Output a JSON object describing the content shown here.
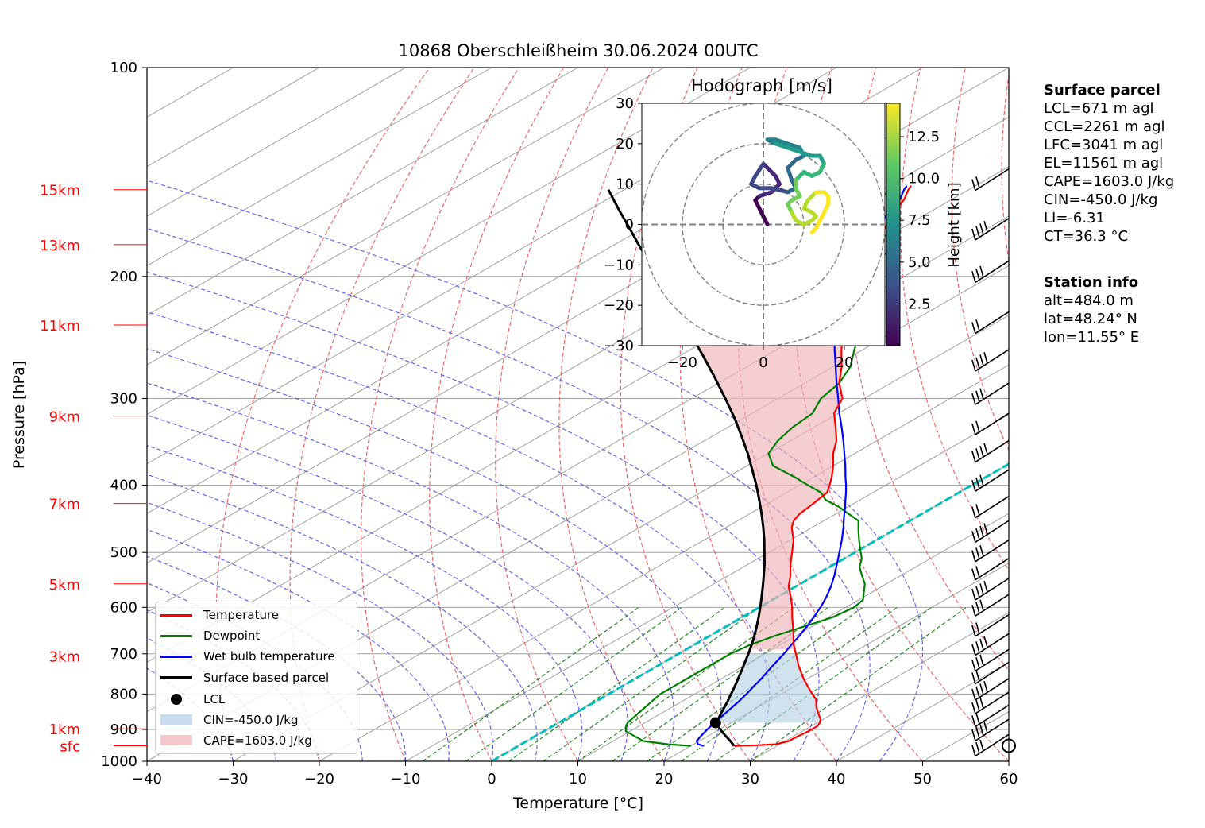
{
  "title": "10868 Oberschleißheim 30.06.2024 00UTC",
  "colors": {
    "temperature": "#ff0000",
    "dewpoint": "#008000",
    "wetbulb": "#0000ff",
    "parcel": "#000000",
    "cin_fill": "#b9d2e6",
    "cape_fill": "#f0b4b9",
    "isotherm": "#a0a0a0",
    "dry_adiabat": "#f06464",
    "moist_adiabat": "#6464f0",
    "mixing_ratio": "#228b22",
    "freezing_ccl": "#00bfbf"
  },
  "chart_data": {
    "type": "line",
    "title": "10868 Oberschleißheim 30.06.2024 00UTC",
    "xlabel": "Temperature [°C]",
    "ylabel": "Pressure [hPa]",
    "x_ticks": [
      "−40",
      "−30",
      "−20",
      "−10",
      "0",
      "10",
      "20",
      "30",
      "40",
      "50",
      "60"
    ],
    "y_ticks": [
      "100",
      "200",
      "300",
      "400",
      "500",
      "600",
      "700",
      "800",
      "900",
      "1000"
    ],
    "xlim": [
      -40,
      60
    ],
    "ylim": [
      1000,
      100
    ],
    "y_scale": "log",
    "grid": true,
    "height_labels": [
      {
        "label": "15km",
        "p": 150
      },
      {
        "label": "13km",
        "p": 180
      },
      {
        "label": "11km",
        "p": 235
      },
      {
        "label": "9km",
        "p": 318
      },
      {
        "label": "7km",
        "p": 425
      },
      {
        "label": "5km",
        "p": 555
      },
      {
        "label": "3km",
        "p": 705
      },
      {
        "label": "1km",
        "p": 898
      },
      {
        "label": "sfc",
        "p": 950
      }
    ],
    "series": [
      {
        "name": "Temperature",
        "p": [
          950,
          948,
          945,
          935,
          920,
          905,
          890,
          880,
          870,
          855,
          835,
          815,
          790,
          760,
          730,
          705,
          680,
          650,
          620,
          600,
          580,
          560,
          540,
          520,
          500,
          480,
          460,
          450,
          440,
          430,
          420,
          410,
          400,
          390,
          375,
          360,
          345,
          330,
          315,
          300,
          285,
          270,
          255,
          240,
          230,
          220,
          210,
          205,
          200,
          195,
          190,
          185,
          180,
          175,
          170,
          165,
          160,
          155,
          150,
          148
        ],
        "values": [
          25,
          27.5,
          29.5,
          30.4,
          30.5,
          30.7,
          30.7,
          30.3,
          29.7,
          28.4,
          26.7,
          25.2,
          22.6,
          19.5,
          16.5,
          14.1,
          11.6,
          8.8,
          5.8,
          3.8,
          1.6,
          -0.8,
          -2.8,
          -5.1,
          -7.3,
          -9.6,
          -12.4,
          -13.5,
          -14.2,
          -14.5,
          -14.9,
          -15.3,
          -16.5,
          -17.8,
          -20.0,
          -22.5,
          -24.7,
          -27.5,
          -30.5,
          -32.5,
          -36.0,
          -39.0,
          -42.5,
          -46.0,
          -48.5,
          -51.0,
          -54.0,
          -54.5,
          -55.0,
          -55.5,
          -57.0,
          -58.5,
          -60.0,
          -61.0,
          -62.0,
          -63.5,
          -64.5,
          -65.5,
          -67.0,
          -67.5
        ]
      },
      {
        "name": "Dewpoint",
        "p": [
          950,
          945,
          935,
          920,
          905,
          890,
          880,
          860,
          840,
          820,
          800,
          780,
          760,
          740,
          720,
          700,
          680,
          660,
          640,
          620,
          600,
          585,
          570,
          555,
          540,
          525,
          510,
          495,
          480,
          465,
          450,
          440,
          430,
          420,
          410,
          400,
          390,
          375,
          360,
          345,
          330,
          315,
          300,
          285,
          270,
          255,
          245,
          235,
          225,
          215,
          205,
          200,
          195,
          190,
          185,
          180,
          175,
          170,
          165,
          160,
          155,
          150,
          148
        ],
        "values": [
          20.0,
          17.0,
          13.5,
          11.5,
          9.5,
          8.5,
          8.0,
          7.5,
          7.0,
          6.5,
          6.0,
          6.0,
          6.0,
          6.0,
          6.0,
          6.0,
          6.5,
          7.5,
          9.0,
          10.5,
          11.0,
          10.5,
          9.0,
          7.5,
          5.5,
          3.5,
          2.0,
          0.0,
          -2.0,
          -4.0,
          -6.0,
          -8.5,
          -11.0,
          -14.0,
          -16.0,
          -19.0,
          -22.0,
          -27.0,
          -30.0,
          -31.5,
          -32.5,
          -33.0,
          -35.0,
          -36.0,
          -38.0,
          -41.0,
          -43.0,
          -46.5,
          -50.0,
          -53.0,
          -55.0,
          -56.0,
          -59.0,
          -58.0,
          -56.5,
          -58.0,
          -60.0,
          -66.0,
          -68.0,
          -68.0,
          -68.5,
          -69.0,
          -70.0
        ]
      },
      {
        "name": "Wet bulb temperature",
        "p": [
          950,
          945,
          935,
          920,
          900,
          880,
          860,
          840,
          820,
          800,
          780,
          760,
          740,
          720,
          700,
          680,
          660,
          640,
          620,
          600,
          580,
          560,
          540,
          520,
          500,
          480,
          460,
          450,
          440,
          430,
          420,
          410,
          400,
          390,
          375,
          360,
          345,
          330,
          315,
          300,
          285,
          270,
          255,
          240,
          230,
          220,
          210,
          205,
          200,
          195,
          190,
          185,
          180,
          175,
          170,
          165,
          160,
          155,
          150,
          148
        ],
        "values": [
          21.5,
          20.5,
          19.7,
          19.2,
          18.6,
          18.1,
          17.6,
          17.1,
          16.6,
          16.0,
          15.3,
          14.6,
          13.8,
          13.0,
          12.2,
          11.3,
          10.4,
          9.4,
          8.3,
          7.1,
          5.7,
          4.1,
          2.3,
          0.3,
          -1.8,
          -4.0,
          -6.4,
          -7.7,
          -9.0,
          -10.3,
          -11.7,
          -13.1,
          -14.6,
          -16.2,
          -18.6,
          -21.2,
          -23.9,
          -26.8,
          -29.9,
          -33.0,
          -36.3,
          -39.7,
          -43.3,
          -47.0,
          -49.5,
          -52.0,
          -54.5,
          -55.0,
          -55.5,
          -56.0,
          -57.5,
          -59.0,
          -60.5,
          -61.5,
          -62.5,
          -64.0,
          -65.0,
          -66.0,
          -67.5,
          -68.0
        ]
      },
      {
        "name": "Surface based parcel",
        "p": [
          950,
          935,
          920,
          905,
          890,
          880,
          860,
          840,
          820,
          800,
          780,
          760,
          740,
          720,
          700,
          680,
          660,
          640,
          620,
          600,
          580,
          560,
          540,
          520,
          500,
          480,
          460,
          440,
          420,
          400,
          380,
          360,
          340,
          320,
          300,
          280,
          260,
          240,
          220,
          210,
          200,
          190,
          180,
          170,
          160,
          150
        ],
        "values": [
          25.0,
          23.6,
          22.1,
          20.6,
          19.2,
          18.3,
          17.3,
          16.3,
          15.3,
          14.2,
          13.1,
          11.9,
          10.7,
          9.4,
          8.1,
          6.7,
          5.2,
          3.6,
          1.9,
          0.1,
          -1.8,
          -3.8,
          -5.9,
          -8.1,
          -10.5,
          -13.0,
          -15.7,
          -18.6,
          -21.7,
          -25.0,
          -28.6,
          -32.4,
          -36.6,
          -41.1,
          -46.1,
          -51.5,
          -57.4,
          -63.9,
          -70.9,
          -74.7,
          -78.6,
          -82.8,
          -87.2,
          -91.8,
          -96.7,
          -101.8
        ]
      }
    ],
    "lcl": {
      "p": 880,
      "t": 18.2
    },
    "wind_barbs": {
      "x_position": "right axis",
      "p": [
        950,
        915,
        870,
        830,
        795,
        760,
        720,
        690,
        655,
        615,
        575,
        545,
        510,
        480,
        450,
        415,
        380,
        345,
        315,
        285,
        255,
        225,
        190,
        165,
        140
      ]
    },
    "hodograph": {
      "title": "Hodograph [m/s]",
      "xlim": [
        -30,
        30
      ],
      "ylim": [
        -30,
        30
      ],
      "ticks": [
        "−30",
        "−20",
        "−10",
        "0",
        "10",
        "20",
        "30"
      ],
      "x_ticks": [
        "−20",
        "0",
        "20"
      ],
      "rings": [
        10,
        20,
        30
      ],
      "colorbar_label": "Height [km]",
      "colorbar_ticks": [
        "2.5",
        "5.0",
        "7.5",
        "10.0",
        "12.5"
      ],
      "trace": [
        [
          1,
          0
        ],
        [
          0,
          2
        ],
        [
          -1,
          4
        ],
        [
          -2,
          6
        ],
        [
          -1,
          7
        ],
        [
          2,
          8
        ],
        [
          4,
          10
        ],
        [
          3,
          12
        ],
        [
          1,
          14
        ],
        [
          0,
          15
        ],
        [
          -2,
          12
        ],
        [
          -3,
          10
        ],
        [
          -1,
          9
        ],
        [
          2,
          9
        ],
        [
          6,
          8
        ],
        [
          8,
          9
        ],
        [
          7,
          11
        ],
        [
          6,
          14
        ],
        [
          8,
          16
        ],
        [
          10,
          17
        ],
        [
          9,
          19
        ],
        [
          6,
          20
        ],
        [
          3,
          21
        ],
        [
          1,
          21
        ],
        [
          3,
          20
        ],
        [
          6,
          19
        ],
        [
          9,
          18
        ],
        [
          12,
          17
        ],
        [
          14,
          17
        ],
        [
          15,
          15
        ],
        [
          14,
          13
        ],
        [
          12,
          12
        ],
        [
          10,
          13
        ],
        [
          9,
          12
        ],
        [
          8,
          11
        ],
        [
          8,
          9
        ],
        [
          9,
          7
        ],
        [
          7,
          6
        ],
        [
          6,
          5
        ],
        [
          7,
          3
        ],
        [
          8,
          1
        ],
        [
          10,
          0
        ],
        [
          12,
          1
        ],
        [
          13,
          2
        ],
        [
          12,
          3
        ],
        [
          10,
          4
        ],
        [
          11,
          6
        ],
        [
          13,
          8
        ],
        [
          15,
          8
        ],
        [
          16,
          7
        ],
        [
          16,
          5
        ],
        [
          15,
          3
        ],
        [
          14,
          1
        ],
        [
          13,
          -1
        ],
        [
          12,
          -2
        ]
      ],
      "trace_heights": [
        0.3,
        0.6,
        0.9,
        1.2,
        1.5,
        1.8,
        2.1,
        2.4,
        2.7,
        3.0,
        3.3,
        3.6,
        3.9,
        4.2,
        4.5,
        4.8,
        5.1,
        5.4,
        5.7,
        6.0,
        6.3,
        6.6,
        6.9,
        7.2,
        7.5,
        7.8,
        8.1,
        8.4,
        8.7,
        9.0,
        9.3,
        9.6,
        9.9,
        10.2,
        10.5,
        10.8,
        11.1,
        11.4,
        11.7,
        12.0,
        12.2,
        12.4,
        12.6,
        12.8,
        13.0,
        13.2,
        13.4,
        13.6,
        13.8,
        14.0,
        14.2,
        14.4,
        14.6,
        14.8,
        15.0
      ]
    },
    "legend": {
      "placement": "lower-left",
      "entries": [
        "Temperature",
        "Dewpoint",
        "Wet bulb temperature",
        "Surface based parcel",
        "LCL",
        "CIN=-450.0 J/kg",
        "CAPE=1603.0 J/kg"
      ]
    }
  },
  "surface_parcel": {
    "heading": "Surface parcel",
    "lines": [
      "LCL=671 m agl",
      "CCL=2261 m agl",
      "LFC=3041 m agl",
      "EL=11561 m agl",
      "CAPE=1603.0 J/kg",
      "CIN=-450.0 J/kg",
      "LI=-6.31",
      "CT=36.3 °C"
    ]
  },
  "station_info": {
    "heading": "Station info",
    "lines": [
      "alt=484.0 m",
      "lat=48.24° N",
      "lon=11.55° E"
    ]
  }
}
